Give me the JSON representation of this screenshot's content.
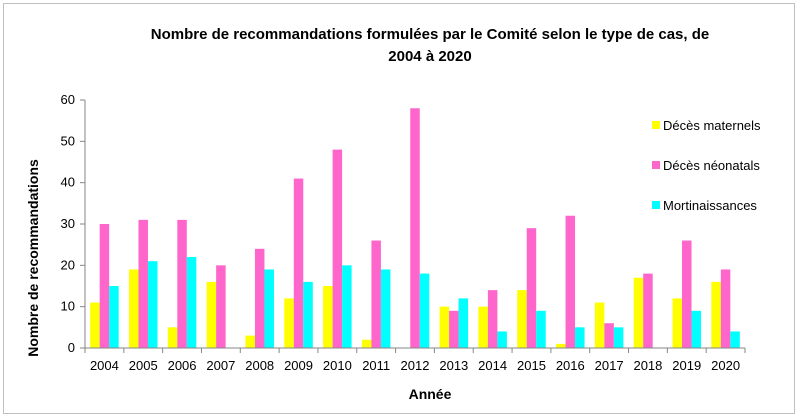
{
  "chart_data": {
    "type": "bar",
    "title_line1": "Nombre de recommandations formulées par le Comité selon le type de cas, de",
    "title_line2": "2004 à 2020",
    "xlabel": "Année",
    "ylabel": "Nombre de recommandations",
    "ylim": [
      0,
      60
    ],
    "yticks": [
      "0",
      "10",
      "20",
      "30",
      "40",
      "50",
      "60"
    ],
    "grid": false,
    "legend_position": "right",
    "categories": [
      "2004",
      "2005",
      "2006",
      "2007",
      "2008",
      "2009",
      "2010",
      "2011",
      "2012",
      "2013",
      "2014",
      "2015",
      "2016",
      "2017",
      "2018",
      "2019",
      "2020"
    ],
    "series": [
      {
        "name": "Décès maternels",
        "color": "#ffff00",
        "values": [
          11,
          19,
          5,
          16,
          3,
          12,
          15,
          2,
          0,
          10,
          10,
          14,
          1,
          11,
          17,
          12,
          16
        ]
      },
      {
        "name": "Décès néonatals",
        "color": "#ff66cc",
        "values": [
          30,
          31,
          31,
          20,
          24,
          41,
          48,
          26,
          58,
          9,
          14,
          29,
          32,
          6,
          18,
          26,
          19
        ]
      },
      {
        "name": "Mortinaissances",
        "color": "#00ffff",
        "values": [
          15,
          21,
          22,
          0,
          19,
          16,
          20,
          19,
          18,
          12,
          4,
          9,
          5,
          5,
          0,
          9,
          4
        ]
      }
    ]
  }
}
